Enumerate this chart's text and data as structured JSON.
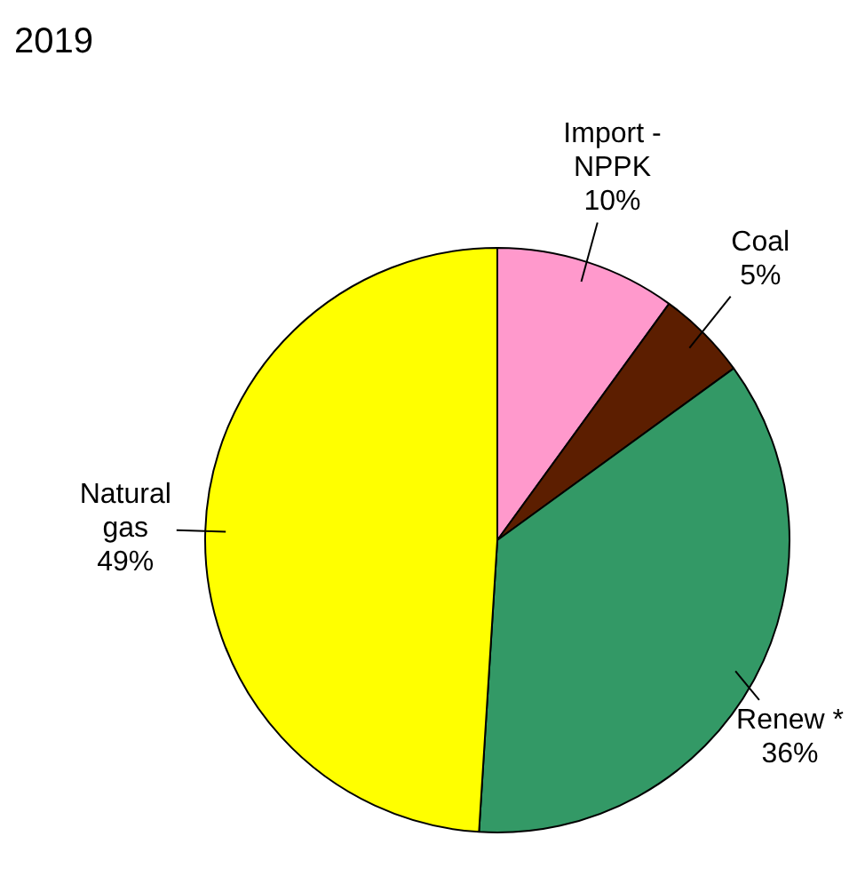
{
  "chart_data": {
    "type": "pie",
    "title": "2019",
    "categories": [
      "Import - NPPK",
      "Coal",
      "Renew *",
      "Natural gas"
    ],
    "values": [
      10,
      5,
      36,
      49
    ],
    "colors": [
      "#ff99cc",
      "#5c1e00",
      "#339966",
      "#ffff00"
    ],
    "value_labels": [
      "10%",
      "5%",
      "36%",
      "49%"
    ],
    "legend": false
  }
}
